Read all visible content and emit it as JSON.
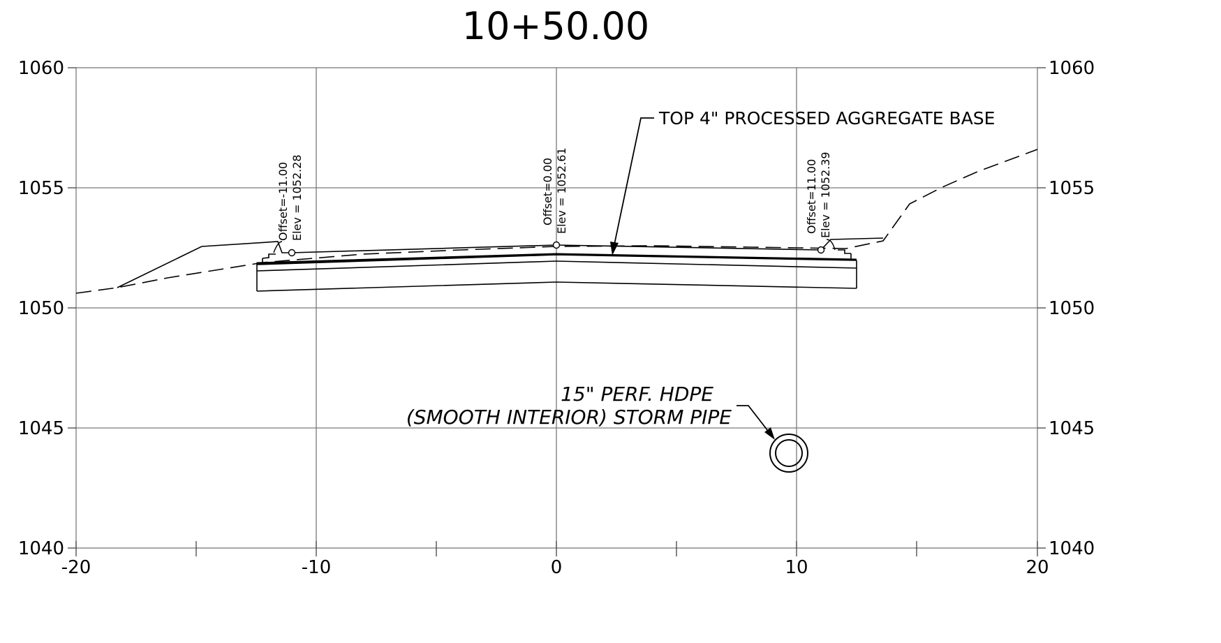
{
  "title": "10+50.00",
  "axes": {
    "x_ticks": [
      "-20",
      "-10",
      "0",
      "10",
      "20"
    ],
    "y_ticks": [
      "1040",
      "1045",
      "1050",
      "1055",
      "1060"
    ]
  },
  "chart_data": {
    "type": "line",
    "title": "10+50.00",
    "xlim": [
      -20,
      20
    ],
    "ylim": [
      1040,
      1060
    ],
    "grid": true,
    "x_major_ticks": [
      -20,
      -10,
      0,
      10,
      20
    ],
    "x_minor_ticks": [
      -15,
      -5,
      5,
      15
    ],
    "y_ticks": [
      1040,
      1045,
      1050,
      1055,
      1060
    ],
    "series": [
      {
        "style": "dashed",
        "x": [
          -20,
          -18.1,
          -16,
          -12,
          -8,
          -4,
          0,
          4,
          8,
          12,
          13.6,
          14.7,
          16,
          17.5,
          20
        ],
        "y": [
          1050.6,
          1050.85,
          1051.2,
          1051.8,
          1052.15,
          1052.35,
          1052.5,
          1052.55,
          1052.5,
          1052.45,
          1052.75,
          1054.3,
          1054.9,
          1055.4,
          1056.6
        ]
      },
      {
        "style": "solid",
        "x": [
          -18.1,
          -14.8,
          -11.3,
          -11.0,
          0,
          11.0,
          11.5,
          13.6
        ],
        "y": [
          1050.85,
          1052.6,
          1052.75,
          1052.28,
          1052.61,
          1052.39,
          1052.9,
          1052.95
        ]
      },
      {
        "style": "solid",
        "x": [
          -12.4,
          0,
          12.5
        ],
        "y": [
          1051.9,
          1052.15,
          1051.9
        ]
      },
      {
        "style": "solid",
        "x": [
          -12.5,
          0,
          12.5
        ],
        "y": [
          1050.7,
          1051.05,
          1050.75
        ]
      }
    ],
    "points": [
      {
        "x": -11.0,
        "y": 1052.28,
        "labels": [
          "Offset=-11.00",
          "Elev = 1052.28"
        ]
      },
      {
        "x": 0.0,
        "y": 1052.61,
        "labels": [
          "Offset=0.00",
          "Elev = 1052.61"
        ]
      },
      {
        "x": 11.0,
        "y": 1052.39,
        "labels": [
          "Offset=11.00",
          "Elev = 1052.39"
        ]
      }
    ],
    "pipe": {
      "x": 9.7,
      "y": 1044.0
    }
  },
  "annotations": {
    "left_point": [
      "Offset=-11.00",
      "Elev = 1052.28"
    ],
    "center_point": [
      "Offset=0.00",
      "Elev = 1052.61"
    ],
    "right_point": [
      "Offset=11.00",
      "Elev = 1052.39"
    ],
    "base_callout": "TOP 4\" PROCESSED AGGREGATE BASE",
    "pipe_callout_line1": "15\" PERF. HDPE",
    "pipe_callout_line2": "(SMOOTH INTERIOR) STORM PIPE"
  }
}
